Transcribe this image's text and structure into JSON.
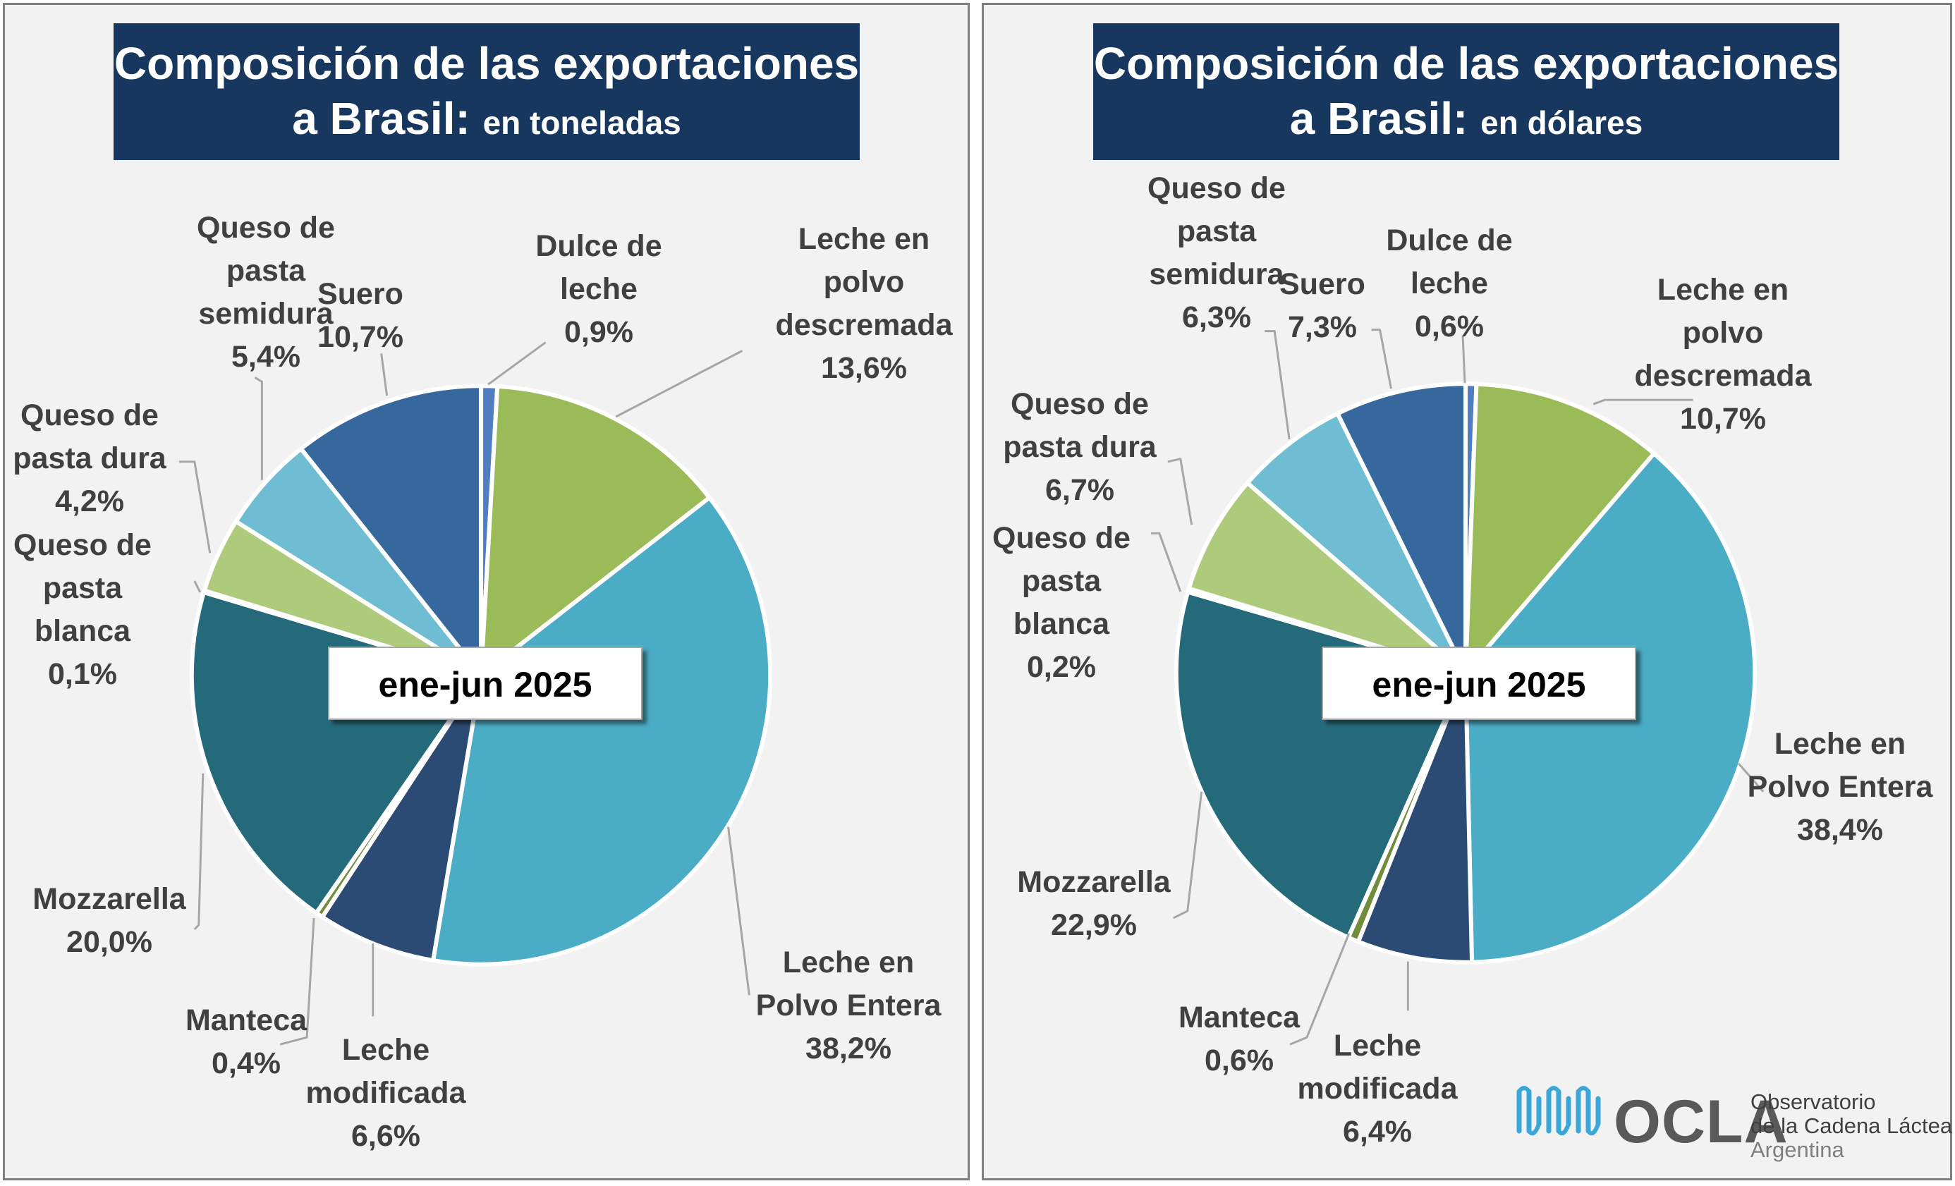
{
  "chart_data": [
    {
      "type": "pie",
      "title_main": "Composición de las exportaciones",
      "title_line2": "a Brasil:",
      "title_unit": "en toneladas",
      "period": "ene-jun 2025",
      "slices": [
        {
          "name": "Dulce de leche",
          "value": 0.9,
          "label": "0,9%",
          "color": "#4f7fc0",
          "lines": [
            "Dulce de",
            "leche"
          ]
        },
        {
          "name": "Leche en polvo descremada",
          "value": 13.6,
          "label": "13,6%",
          "color": "#9bbb59",
          "lines": [
            "Leche en",
            "polvo",
            "descremada"
          ]
        },
        {
          "name": "Leche en Polvo Entera",
          "value": 38.2,
          "label": "38,2%",
          "color": "#4bacc6",
          "lines": [
            "Leche en",
            "Polvo Entera"
          ]
        },
        {
          "name": "Leche modificada",
          "value": 6.6,
          "label": "6,6%",
          "color": "#2b4b75",
          "lines": [
            "Leche",
            "modificada"
          ]
        },
        {
          "name": "Manteca",
          "value": 0.4,
          "label": "0,4%",
          "color": "#718c3a",
          "lines": [
            "Manteca"
          ]
        },
        {
          "name": "Mozzarella",
          "value": 20.0,
          "label": "20,0%",
          "color": "#256a7b",
          "lines": [
            "Mozzarella"
          ]
        },
        {
          "name": "Queso de pasta blanca",
          "value": 0.1,
          "label": "0,1%",
          "color": "#1f3a5c",
          "lines": [
            "Queso de",
            "pasta",
            "blanca"
          ]
        },
        {
          "name": "Queso de pasta dura",
          "value": 4.2,
          "label": "4,2%",
          "color": "#aecb7b",
          "lines": [
            "Queso de",
            "pasta dura"
          ]
        },
        {
          "name": "Queso de pasta semidura",
          "value": 5.4,
          "label": "5,4%",
          "color": "#6fbdd2",
          "lines": [
            "Queso de",
            "pasta",
            "semidura"
          ]
        },
        {
          "name": "Suero",
          "value": 10.7,
          "label": "10,7%",
          "color": "#36689d",
          "lines": [
            "Suero"
          ]
        }
      ]
    },
    {
      "type": "pie",
      "title_main": "Composición de las exportaciones",
      "title_line2": "a Brasil:",
      "title_unit": "en dólares",
      "period": "ene-jun 2025",
      "slices": [
        {
          "name": "Dulce de leche",
          "value": 0.6,
          "label": "0,6%",
          "color": "#4f7fc0",
          "lines": [
            "Dulce de",
            "leche"
          ]
        },
        {
          "name": "Leche en polvo descremada",
          "value": 10.7,
          "label": "10,7%",
          "color": "#9bbb59",
          "lines": [
            "Leche en",
            "polvo",
            "descremada"
          ]
        },
        {
          "name": "Leche en Polvo Entera",
          "value": 38.4,
          "label": "38,4%",
          "color": "#4bacc6",
          "lines": [
            "Leche en",
            "Polvo Entera"
          ]
        },
        {
          "name": "Leche modificada",
          "value": 6.4,
          "label": "6,4%",
          "color": "#2b4b75",
          "lines": [
            "Leche",
            "modificada"
          ]
        },
        {
          "name": "Manteca",
          "value": 0.6,
          "label": "0,6%",
          "color": "#718c3a",
          "lines": [
            "Manteca"
          ]
        },
        {
          "name": "Mozzarella",
          "value": 22.9,
          "label": "22,9%",
          "color": "#256a7b",
          "lines": [
            "Mozzarella"
          ]
        },
        {
          "name": "Queso de pasta blanca",
          "value": 0.2,
          "label": "0,2%",
          "color": "#1f3a5c",
          "lines": [
            "Queso de",
            "pasta",
            "blanca"
          ]
        },
        {
          "name": "Queso de pasta dura",
          "value": 6.7,
          "label": "6,7%",
          "color": "#aecb7b",
          "lines": [
            "Queso de",
            "pasta dura"
          ]
        },
        {
          "name": "Queso de pasta semidura",
          "value": 6.3,
          "label": "6,3%",
          "color": "#6fbdd2",
          "lines": [
            "Queso de",
            "pasta",
            "semidura"
          ]
        },
        {
          "name": "Suero",
          "value": 7.3,
          "label": "7,3%",
          "color": "#36689d",
          "lines": [
            "Suero"
          ]
        }
      ]
    }
  ],
  "logo": {
    "name": "OCLA",
    "line1": "Observatorio",
    "line2": "de la Cadena Láctea",
    "line3": "Argentina",
    "color": "#3aa7d9"
  }
}
